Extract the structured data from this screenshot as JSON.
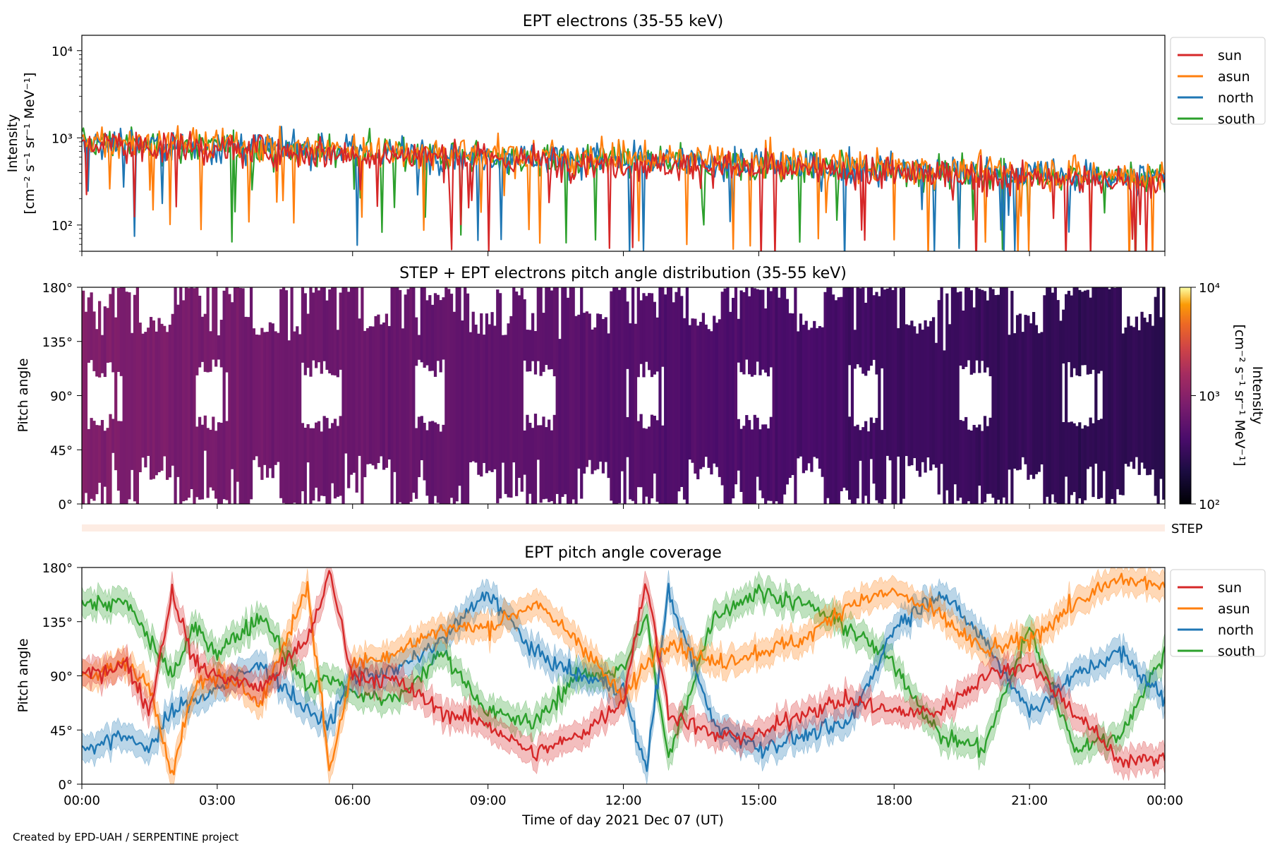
{
  "credit": "Created by EPD-UAH / SERPENTINE project",
  "colors": {
    "sun": "#d62728",
    "asun": "#ff7f0e",
    "north": "#1f77b4",
    "south": "#2ca02c"
  },
  "chart_data": [
    {
      "type": "line",
      "title": "EPT electrons (35-55 keV)",
      "ylabel_line1": "Intensity",
      "ylabel_line2": "[cm⁻² s⁻¹ sr⁻¹ MeV⁻¹]",
      "yscale": "log",
      "ylim": [
        50,
        15000
      ],
      "yticks": [
        "10²",
        "10³",
        "10⁴"
      ],
      "xlim_hours": [
        0,
        24
      ],
      "legend": [
        "sun",
        "asun",
        "north",
        "south"
      ],
      "legend_position": "outside-right-top",
      "series": [
        {
          "name": "sun",
          "start": 850,
          "end": 300
        },
        {
          "name": "asun",
          "start": 950,
          "end": 360
        },
        {
          "name": "north",
          "start": 900,
          "end": 340
        },
        {
          "name": "south",
          "start": 880,
          "end": 330
        }
      ],
      "note": "Noisy time series decreasing from ~1e3 at 00:00 to ~3e2 at 24:00"
    },
    {
      "type": "heatmap",
      "title": "STEP + EPT electrons pitch angle distribution (35-55 keV)",
      "ylabel": "Pitch angle",
      "yticks": [
        "0°",
        "45°",
        "90°",
        "135°",
        "180°"
      ],
      "ylim": [
        0,
        180
      ],
      "xlim_hours": [
        0,
        24
      ],
      "colorbar_label_line1": "Intensity",
      "colorbar_label_line2": "[cm⁻² s⁻¹ sr⁻¹ MeV⁻¹]",
      "colorbar_ticks": [
        "10²",
        "10³",
        "10⁴"
      ],
      "colorbar_scale": "log",
      "colorbar_range": [
        100,
        10000
      ],
      "colormap": "inferno"
    },
    {
      "type": "bar",
      "label": "STEP",
      "xlim_hours": [
        0,
        24
      ]
    },
    {
      "type": "line",
      "title": "EPT pitch angle coverage",
      "ylabel": "Pitch angle",
      "yticks": [
        "0°",
        "45°",
        "90°",
        "135°",
        "180°"
      ],
      "ylim": [
        0,
        180
      ],
      "xlim_hours": [
        0,
        24
      ],
      "xticks": [
        "00:00",
        "03:00",
        "06:00",
        "09:00",
        "12:00",
        "15:00",
        "18:00",
        "21:00",
        "00:00"
      ],
      "xlabel": "Time of day 2021 Dec 07 (UT)",
      "legend": [
        "sun",
        "asun",
        "north",
        "south"
      ],
      "legend_position": "outside-right-top",
      "series": [
        {
          "name": "sun",
          "x": [
            0,
            1,
            1.5,
            2,
            2.5,
            3,
            4,
            5,
            5.5,
            6,
            7,
            8,
            9,
            10,
            11,
            12,
            12.5,
            13,
            14,
            15,
            16,
            17,
            18,
            19,
            20,
            21,
            22,
            23,
            24
          ],
          "y": [
            90,
            100,
            60,
            160,
            100,
            90,
            80,
            120,
            175,
            90,
            85,
            60,
            50,
            25,
            40,
            70,
            170,
            60,
            40,
            40,
            60,
            70,
            60,
            60,
            90,
            100,
            60,
            20,
            20
          ]
        },
        {
          "name": "asun",
          "x": [
            0,
            1,
            1.5,
            2,
            2.5,
            3,
            4,
            5,
            5.5,
            6,
            7,
            8,
            9,
            10,
            11,
            12,
            12.5,
            13,
            14,
            15,
            16,
            17,
            18,
            19,
            20,
            21,
            22,
            23,
            24
          ],
          "y": [
            90,
            100,
            80,
            10,
            80,
            90,
            70,
            165,
            10,
            100,
            110,
            130,
            130,
            150,
            120,
            70,
            100,
            120,
            100,
            110,
            120,
            150,
            160,
            140,
            110,
            120,
            150,
            170,
            165
          ]
        },
        {
          "name": "north",
          "x": [
            0,
            1,
            1.5,
            2,
            2.5,
            3,
            4,
            5,
            5.5,
            6,
            7,
            8,
            9,
            10,
            11,
            12,
            12.5,
            13,
            14,
            15,
            16,
            17,
            18,
            19,
            20,
            21,
            22,
            23,
            24
          ],
          "y": [
            30,
            40,
            30,
            60,
            70,
            80,
            100,
            60,
            50,
            90,
            95,
            120,
            160,
            110,
            90,
            80,
            10,
            160,
            50,
            30,
            40,
            50,
            130,
            160,
            120,
            60,
            90,
            110,
            70
          ]
        },
        {
          "name": "south",
          "x": [
            0,
            1,
            1.5,
            2,
            2.5,
            3,
            4,
            5,
            5.5,
            6,
            7,
            8,
            9,
            10,
            11,
            12,
            12.5,
            13,
            14,
            15,
            16,
            17,
            18,
            19,
            20,
            21,
            22,
            23,
            24
          ],
          "y": [
            150,
            150,
            120,
            90,
            130,
            110,
            140,
            80,
            90,
            75,
            70,
            110,
            60,
            50,
            90,
            95,
            140,
            20,
            140,
            160,
            150,
            130,
            100,
            40,
            30,
            130,
            30,
            40,
            110
          ]
        }
      ]
    }
  ]
}
